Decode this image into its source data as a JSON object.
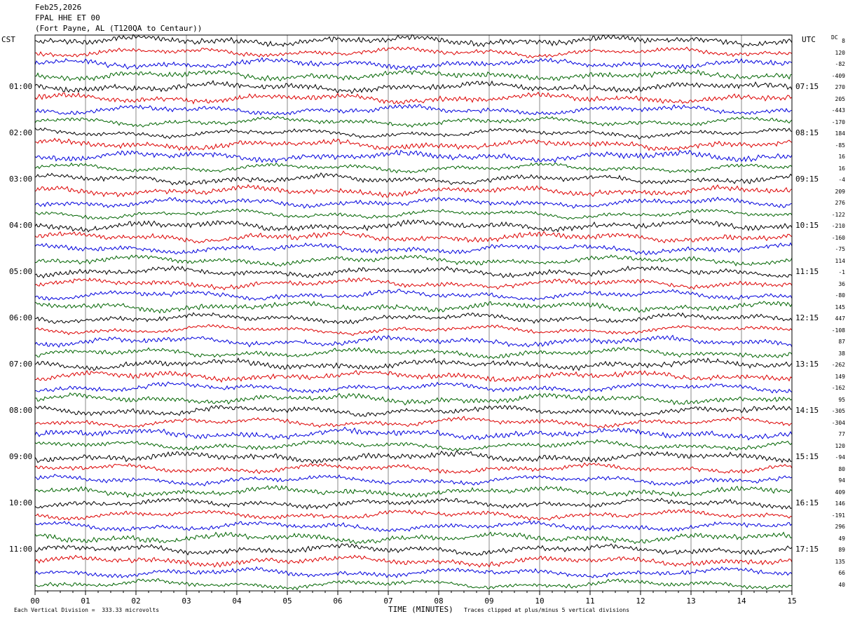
{
  "header": {
    "date": "Feb25,2026",
    "station": "FPAL HHE ET 00",
    "location": "(Fort Payne, AL (T120QA to Centaur))"
  },
  "left_tz": "CST",
  "right_tz": "UTC",
  "dc_label": "DC",
  "footer": {
    "left": "Each Vertical Division =  333.33 microvolts",
    "center": "TIME (MINUTES)",
    "right": "Traces clipped at plus/minus 5 vertical divisions"
  },
  "chart_data": {
    "type": "line",
    "xlabel": "TIME (MINUTES)",
    "xlim": [
      0,
      15
    ],
    "x_ticks": [
      "00",
      "01",
      "02",
      "03",
      "04",
      "05",
      "06",
      "07",
      "08",
      "09",
      "10",
      "11",
      "12",
      "13",
      "14",
      "15"
    ],
    "left_hour_labels": [
      {
        "label": "01:00",
        "row": 4
      },
      {
        "label": "02:00",
        "row": 8
      },
      {
        "label": "03:00",
        "row": 12
      },
      {
        "label": "04:00",
        "row": 16
      },
      {
        "label": "05:00",
        "row": 20
      },
      {
        "label": "06:00",
        "row": 24
      },
      {
        "label": "07:00",
        "row": 28
      },
      {
        "label": "08:00",
        "row": 32
      },
      {
        "label": "09:00",
        "row": 36
      },
      {
        "label": "10:00",
        "row": 40
      },
      {
        "label": "11:00",
        "row": 44
      }
    ],
    "right_hour_labels": [
      {
        "label": "07:15",
        "row": 4
      },
      {
        "label": "08:15",
        "row": 8
      },
      {
        "label": "09:15",
        "row": 12
      },
      {
        "label": "10:15",
        "row": 16
      },
      {
        "label": "11:15",
        "row": 20
      },
      {
        "label": "12:15",
        "row": 24
      },
      {
        "label": "13:15",
        "row": 28
      },
      {
        "label": "14:15",
        "row": 32
      },
      {
        "label": "15:15",
        "row": 36
      },
      {
        "label": "16:15",
        "row": 40
      },
      {
        "label": "17:15",
        "row": 44
      }
    ],
    "trace_colors": [
      "#000000",
      "#dd0000",
      "#0000dd",
      "#006400"
    ],
    "dc_offsets": [
      "8",
      "120",
      "-82",
      "-409",
      "270",
      "205",
      "-443",
      "-170",
      "184",
      "-85",
      "16",
      "16",
      "-4",
      "209",
      "276",
      "-122",
      "-210",
      "-160",
      "-75",
      "114",
      "-1",
      "36",
      "-80",
      "145",
      "447",
      "-108",
      "87",
      "38",
      "-262",
      "149",
      "-162",
      "95",
      "-305",
      "-304",
      "77",
      "120",
      "-94",
      "80",
      "94",
      "409",
      "146",
      "-191",
      "296",
      "49",
      "89",
      "135",
      "66",
      "40"
    ]
  }
}
